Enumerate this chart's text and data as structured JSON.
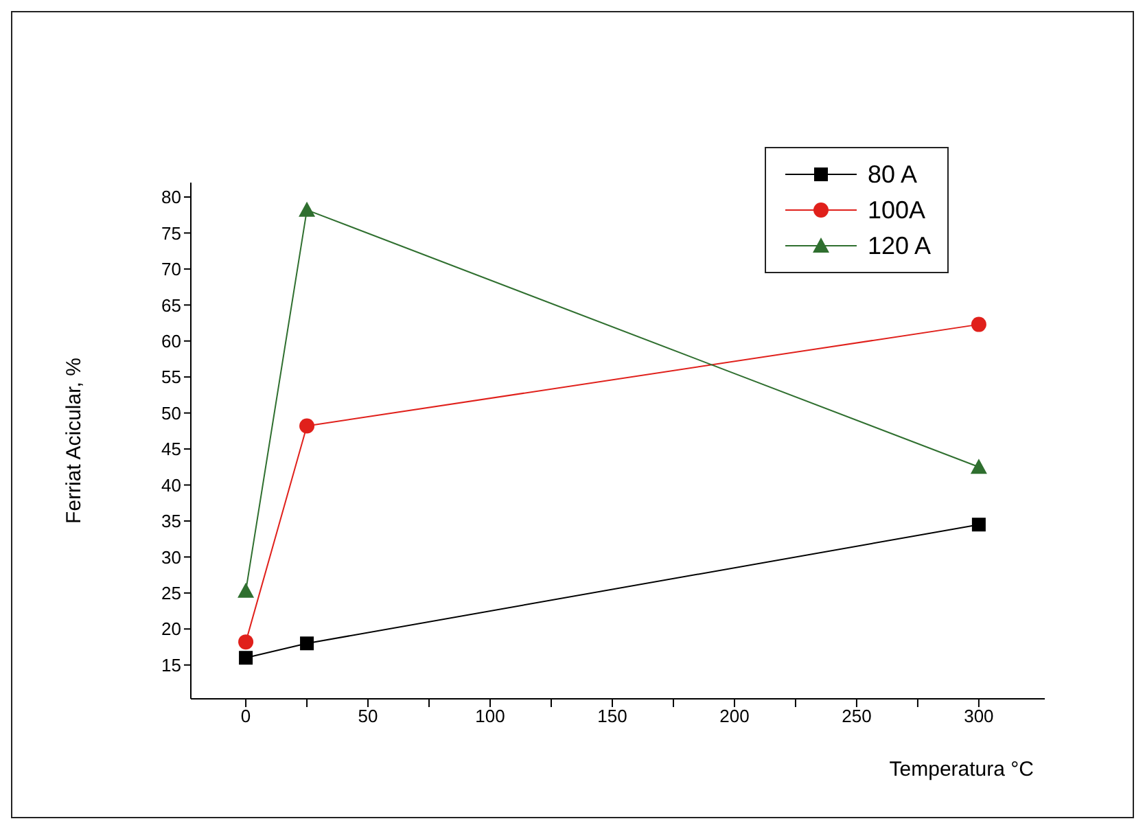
{
  "chart_data": {
    "type": "line",
    "xlabel": "Temperatura °C",
    "ylabel": "Ferriat Acicular, %",
    "x": [
      0,
      25,
      300
    ],
    "series": [
      {
        "name": "80 A",
        "color": "#000000",
        "marker": "square",
        "values": [
          16,
          18,
          34.5
        ]
      },
      {
        "name": "100A",
        "color": "#e0201b",
        "marker": "circle",
        "values": [
          18.2,
          48.2,
          62.3
        ]
      },
      {
        "name": "120 A",
        "color": "#2f6f2f",
        "marker": "triangle",
        "values": [
          25.3,
          78.2,
          42.5
        ]
      }
    ],
    "xlim": [
      -22.5,
      327
    ],
    "xticks": [
      0,
      {
        "value": 25,
        "label": null
      },
      50,
      {
        "value": 75,
        "label": null
      },
      100,
      {
        "value": 125,
        "label": null
      },
      150,
      {
        "value": 175,
        "label": null
      },
      200,
      {
        "value": 225,
        "label": null
      },
      250,
      {
        "value": 275,
        "label": null
      },
      300
    ],
    "ylim": [
      10.3,
      82
    ],
    "yticks": [
      15,
      20,
      25,
      30,
      35,
      40,
      45,
      50,
      55,
      60,
      65,
      70,
      75,
      80
    ],
    "legend": "top right",
    "grid": false
  }
}
